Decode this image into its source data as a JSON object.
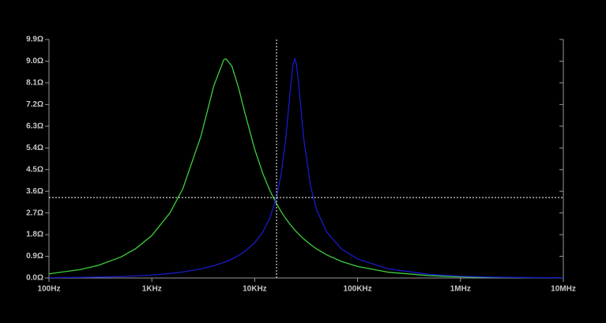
{
  "chart_data": {
    "type": "line",
    "xscale": "log",
    "x": [
      100,
      200,
      300,
      500,
      700,
      1000,
      1500,
      2000,
      3000,
      4000,
      5000,
      5250,
      6000,
      7000,
      8000,
      10000,
      12000,
      14000,
      16300,
      18000,
      20000,
      22000,
      23500,
      24500,
      25500,
      27000,
      30000,
      35000,
      40000,
      50000,
      70000,
      100000,
      200000,
      500000,
      1000000,
      2000000,
      5000000,
      10000000
    ],
    "series": [
      {
        "color": "#3ccf3c",
        "values": [
          0.173,
          0.347,
          0.521,
          0.871,
          1.224,
          1.764,
          2.704,
          3.704,
          5.887,
          7.972,
          9.057,
          9.1,
          8.79,
          7.861,
          6.873,
          5.34,
          4.331,
          3.639,
          3.077,
          2.764,
          2.469,
          2.232,
          2.083,
          1.994,
          1.913,
          1.802,
          1.617,
          1.38,
          1.205,
          0.961,
          0.684,
          0.479,
          0.239,
          0.0956,
          0.0478,
          0.0239,
          0.00956,
          0.00478
        ]
      },
      {
        "color": "#1a1acc",
        "values": [
          0.0124,
          0.0248,
          0.0371,
          0.0619,
          0.0867,
          0.124,
          0.186,
          0.249,
          0.377,
          0.508,
          0.645,
          0.68,
          0.787,
          0.939,
          1.1,
          1.466,
          1.911,
          2.476,
          3.363,
          4.275,
          5.751,
          7.64,
          8.827,
          9.1,
          8.85,
          7.858,
          5.759,
          3.785,
          2.826,
          1.913,
          1.199,
          0.788,
          0.377,
          0.149,
          0.0744,
          0.0372,
          0.0149,
          0.00743
        ]
      }
    ],
    "xlim": [
      100,
      10000000
    ],
    "xticks": [
      {
        "value": 100,
        "label": "100Hz"
      },
      {
        "value": 1000,
        "label": "1KHz"
      },
      {
        "value": 10000,
        "label": "10KHz"
      },
      {
        "value": 100000,
        "label": "100KHz"
      },
      {
        "value": 1000000,
        "label": "1MHz"
      },
      {
        "value": 10000000,
        "label": "10MHz"
      }
    ],
    "ylim": [
      0,
      9.9
    ],
    "yticks": [
      {
        "value": 0,
        "label": "0.0Ω"
      },
      {
        "value": 0.9,
        "label": "0.9Ω"
      },
      {
        "value": 1.8,
        "label": "1.8Ω"
      },
      {
        "value": 2.7,
        "label": "2.7Ω"
      },
      {
        "value": 3.6,
        "label": "3.6Ω"
      },
      {
        "value": 4.5,
        "label": "4.5Ω"
      },
      {
        "value": 5.4,
        "label": "5.4Ω"
      },
      {
        "value": 6.3,
        "label": "6.3Ω"
      },
      {
        "value": 7.2,
        "label": "7.2Ω"
      },
      {
        "value": 8.1,
        "label": "8.1Ω"
      },
      {
        "value": 9.0,
        "label": "9.0Ω"
      },
      {
        "value": 9.9,
        "label": "9.9Ω"
      }
    ],
    "cursor_x": 16300,
    "cursor_y": 3.34
  }
}
